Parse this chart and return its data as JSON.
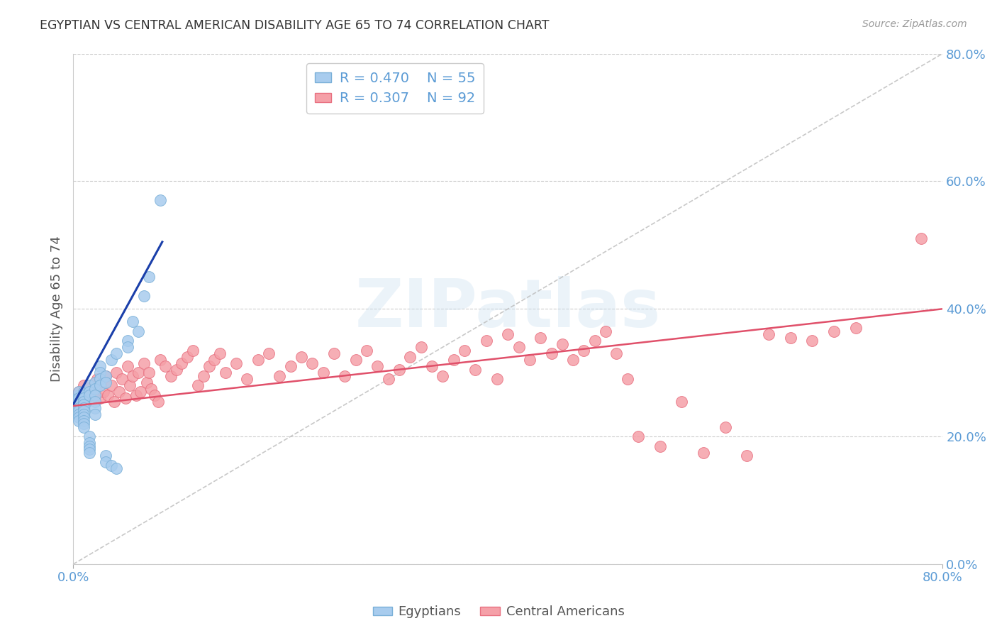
{
  "title": "EGYPTIAN VS CENTRAL AMERICAN DISABILITY AGE 65 TO 74 CORRELATION CHART",
  "source": "Source: ZipAtlas.com",
  "ylabel": "Disability Age 65 to 74",
  "xlim": [
    0.0,
    0.8
  ],
  "ylim": [
    0.0,
    0.8
  ],
  "yticks": [
    0.0,
    0.2,
    0.4,
    0.6,
    0.8
  ],
  "background_color": "#ffffff",
  "grid_color": "#cccccc",
  "title_color": "#333333",
  "axis_label_color": "#555555",
  "right_tick_color": "#5B9BD5",
  "watermark": "ZIPatlas",
  "egyptian_color": "#a8ccee",
  "central_american_color": "#f5a0a8",
  "egyptian_edge_color": "#7ab0d8",
  "central_american_edge_color": "#e87080",
  "trend_blue": "#1a3faa",
  "trend_pink": "#e0506a",
  "diag_color": "#bbbbbb",
  "egyptians_x": [
    0.005,
    0.005,
    0.005,
    0.005,
    0.005,
    0.005,
    0.005,
    0.005,
    0.005,
    0.005,
    0.01,
    0.01,
    0.01,
    0.01,
    0.01,
    0.01,
    0.01,
    0.01,
    0.01,
    0.01,
    0.01,
    0.01,
    0.015,
    0.015,
    0.015,
    0.015,
    0.015,
    0.015,
    0.015,
    0.015,
    0.02,
    0.02,
    0.02,
    0.02,
    0.02,
    0.02,
    0.025,
    0.025,
    0.025,
    0.025,
    0.03,
    0.03,
    0.03,
    0.03,
    0.035,
    0.035,
    0.04,
    0.04,
    0.05,
    0.05,
    0.055,
    0.06,
    0.065,
    0.07,
    0.08
  ],
  "egyptians_y": [
    0.265,
    0.27,
    0.255,
    0.26,
    0.25,
    0.245,
    0.24,
    0.235,
    0.23,
    0.225,
    0.27,
    0.265,
    0.26,
    0.255,
    0.25,
    0.245,
    0.24,
    0.235,
    0.23,
    0.225,
    0.22,
    0.215,
    0.28,
    0.27,
    0.265,
    0.2,
    0.19,
    0.185,
    0.18,
    0.175,
    0.285,
    0.275,
    0.265,
    0.255,
    0.245,
    0.235,
    0.31,
    0.3,
    0.29,
    0.28,
    0.295,
    0.285,
    0.17,
    0.16,
    0.32,
    0.155,
    0.33,
    0.15,
    0.35,
    0.34,
    0.38,
    0.365,
    0.42,
    0.45,
    0.57
  ],
  "central_americans_x": [
    0.005,
    0.008,
    0.01,
    0.012,
    0.015,
    0.018,
    0.02,
    0.022,
    0.025,
    0.028,
    0.03,
    0.032,
    0.035,
    0.038,
    0.04,
    0.042,
    0.045,
    0.048,
    0.05,
    0.052,
    0.055,
    0.058,
    0.06,
    0.062,
    0.065,
    0.068,
    0.07,
    0.072,
    0.075,
    0.078,
    0.08,
    0.085,
    0.09,
    0.095,
    0.1,
    0.105,
    0.11,
    0.115,
    0.12,
    0.125,
    0.13,
    0.135,
    0.14,
    0.15,
    0.16,
    0.17,
    0.18,
    0.19,
    0.2,
    0.21,
    0.22,
    0.23,
    0.24,
    0.25,
    0.26,
    0.27,
    0.28,
    0.29,
    0.3,
    0.31,
    0.32,
    0.33,
    0.34,
    0.35,
    0.36,
    0.37,
    0.38,
    0.39,
    0.4,
    0.41,
    0.42,
    0.43,
    0.44,
    0.45,
    0.46,
    0.47,
    0.48,
    0.49,
    0.5,
    0.51,
    0.52,
    0.54,
    0.56,
    0.58,
    0.6,
    0.62,
    0.64,
    0.66,
    0.68,
    0.7,
    0.72,
    0.78
  ],
  "central_americans_y": [
    0.27,
    0.255,
    0.28,
    0.26,
    0.275,
    0.265,
    0.285,
    0.29,
    0.26,
    0.27,
    0.295,
    0.265,
    0.28,
    0.255,
    0.3,
    0.27,
    0.29,
    0.26,
    0.31,
    0.28,
    0.295,
    0.265,
    0.3,
    0.27,
    0.315,
    0.285,
    0.3,
    0.275,
    0.265,
    0.255,
    0.32,
    0.31,
    0.295,
    0.305,
    0.315,
    0.325,
    0.335,
    0.28,
    0.295,
    0.31,
    0.32,
    0.33,
    0.3,
    0.315,
    0.29,
    0.32,
    0.33,
    0.295,
    0.31,
    0.325,
    0.315,
    0.3,
    0.33,
    0.295,
    0.32,
    0.335,
    0.31,
    0.29,
    0.305,
    0.325,
    0.34,
    0.31,
    0.295,
    0.32,
    0.335,
    0.305,
    0.35,
    0.29,
    0.36,
    0.34,
    0.32,
    0.355,
    0.33,
    0.345,
    0.32,
    0.335,
    0.35,
    0.365,
    0.33,
    0.29,
    0.2,
    0.185,
    0.255,
    0.175,
    0.215,
    0.17,
    0.36,
    0.355,
    0.35,
    0.365,
    0.37,
    0.51
  ],
  "blue_trend_x": [
    0.0,
    0.082
  ],
  "blue_trend_y": [
    0.25,
    0.505
  ],
  "pink_trend_x": [
    0.0,
    0.8
  ],
  "pink_trend_y": [
    0.248,
    0.4
  ]
}
